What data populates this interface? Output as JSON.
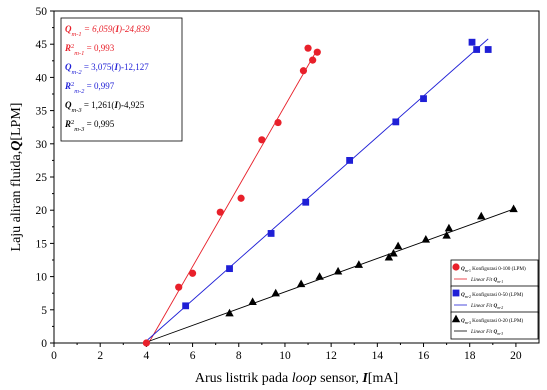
{
  "chart_data": {
    "type": "scatter",
    "xlabel_parts": [
      {
        "text": "Arus listrik pada ",
        "style": "normal"
      },
      {
        "text": "loop",
        "style": "italic"
      },
      {
        "text": " sensor, ",
        "style": "normal"
      },
      {
        "text": "I",
        "style": "bolditalic"
      },
      {
        "text": "[mA]",
        "style": "normal"
      }
    ],
    "ylabel_parts": [
      {
        "text": "Laju aliran fluida,",
        "style": "normal"
      },
      {
        "text": "Q",
        "style": "bolditalic"
      },
      {
        "text": "[LPM]",
        "style": "normal"
      }
    ],
    "xlim": [
      0,
      21
    ],
    "ylim": [
      0,
      50
    ],
    "xticks": [
      0,
      2,
      4,
      6,
      8,
      10,
      12,
      14,
      16,
      18,
      20
    ],
    "yticks": [
      0,
      5,
      10,
      15,
      20,
      25,
      30,
      35,
      40,
      45,
      50
    ],
    "grid": false,
    "series": [
      {
        "color": "#e8202a",
        "marker": "circle",
        "points": [
          [
            4.0,
            0.0
          ],
          [
            5.4,
            8.4
          ],
          [
            6.0,
            10.5
          ],
          [
            7.2,
            19.7
          ],
          [
            8.1,
            21.8
          ],
          [
            9.0,
            30.6
          ],
          [
            9.7,
            33.2
          ],
          [
            10.8,
            41.0
          ],
          [
            11.0,
            44.4
          ],
          [
            11.2,
            42.6
          ],
          [
            11.4,
            43.8
          ]
        ],
        "fit": {
          "x": [
            4.1,
            11.3
          ],
          "y": [
            0.0,
            43.6
          ]
        }
      },
      {
        "color": "#1f1fd6",
        "marker": "square",
        "points": [
          [
            5.7,
            5.6
          ],
          [
            7.6,
            11.2
          ],
          [
            9.4,
            16.5
          ],
          [
            10.9,
            21.2
          ],
          [
            12.8,
            27.5
          ],
          [
            14.8,
            33.3
          ],
          [
            16.0,
            36.8
          ],
          [
            18.1,
            45.3
          ],
          [
            18.3,
            44.2
          ],
          [
            18.8,
            44.2
          ]
        ],
        "fit": {
          "x": [
            3.9,
            18.8
          ],
          "y": [
            0.0,
            45.8
          ]
        }
      },
      {
        "color": "#000000",
        "marker": "triangle",
        "points": [
          [
            7.6,
            4.5
          ],
          [
            8.6,
            6.2
          ],
          [
            9.6,
            7.5
          ],
          [
            10.7,
            8.9
          ],
          [
            11.5,
            10.0
          ],
          [
            12.3,
            10.8
          ],
          [
            13.2,
            11.8
          ],
          [
            14.5,
            12.9
          ],
          [
            14.7,
            13.5
          ],
          [
            14.9,
            14.6
          ],
          [
            16.1,
            15.6
          ],
          [
            17.0,
            16.2
          ],
          [
            17.1,
            17.3
          ],
          [
            18.5,
            19.1
          ],
          [
            19.9,
            20.2
          ]
        ],
        "fit": {
          "x": [
            3.9,
            20.0
          ],
          "y": [
            0.0,
            20.3
          ]
        }
      }
    ],
    "annotations": [
      {
        "color": "#e8202a",
        "parts": [
          {
            "t": "Q",
            "s": "bi"
          },
          {
            "t": "m-1",
            "s": "sub"
          },
          {
            "t": " = 6,059(",
            "s": "i"
          },
          {
            "t": "I",
            "s": "bi"
          },
          {
            "t": ")-24,839",
            "s": "i"
          }
        ]
      },
      {
        "color": "#e8202a",
        "parts": [
          {
            "t": "R",
            "s": "bi"
          },
          {
            "t": "2",
            "s": "sup"
          },
          {
            "t": "m-1",
            "s": "sub"
          },
          {
            "t": " = 0,993",
            "s": "n"
          }
        ]
      },
      {
        "color": "#1f1fd6",
        "parts": [
          {
            "t": "Q",
            "s": "bi"
          },
          {
            "t": "m-2",
            "s": "sub"
          },
          {
            "t": " = 3,075(",
            "s": "n"
          },
          {
            "t": "I",
            "s": "bi"
          },
          {
            "t": ")-12,127",
            "s": "n"
          }
        ]
      },
      {
        "color": "#1f1fd6",
        "parts": [
          {
            "t": "R",
            "s": "bi"
          },
          {
            "t": "2",
            "s": "sup"
          },
          {
            "t": "m-2",
            "s": "sub"
          },
          {
            "t": " = 0,997",
            "s": "n"
          }
        ]
      },
      {
        "color": "#000000",
        "parts": [
          {
            "t": "Q",
            "s": "bi"
          },
          {
            "t": "m-3",
            "s": "sub"
          },
          {
            "t": " = 1,261(",
            "s": "n"
          },
          {
            "t": "I",
            "s": "bi"
          },
          {
            "t": ")-4,925",
            "s": "n"
          }
        ]
      },
      {
        "color": "#000000",
        "parts": [
          {
            "t": "R",
            "s": "bi"
          },
          {
            "t": "2",
            "s": "sup"
          },
          {
            "t": "m-3",
            "s": "sub"
          },
          {
            "t": " = 0,995",
            "s": "n"
          }
        ]
      }
    ],
    "legend_placement": "bottom-right",
    "legend": [
      {
        "entry": {
          "qsub": "m-1",
          "text": " Konfigurasi 0-100 (LPM)"
        },
        "fit": {
          "label": "Linear Fit ",
          "qsub": "m-1"
        }
      },
      {
        "entry": {
          "qsub": "m-2",
          "text": " Konfigurasi 0-50 (LPM)"
        },
        "fit": {
          "label": "Linear Fit ",
          "qsub": "m-2"
        }
      },
      {
        "entry": {
          "qsub": "m-3",
          "text": " Konfigurasi 0-20 (LPM)"
        },
        "fit": {
          "label": "Linear Fit ",
          "qsub": "m-3"
        }
      }
    ]
  }
}
